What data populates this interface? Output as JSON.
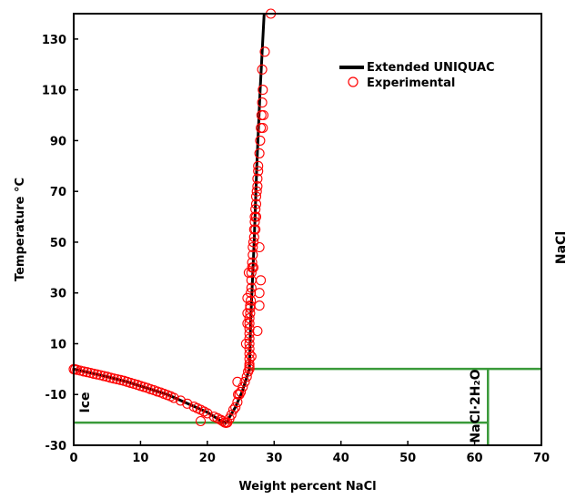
{
  "chart_data": {
    "type": "scatter",
    "title": "",
    "xlabel": "Weight percent NaCl",
    "ylabel": "Temperature °C",
    "xlim": [
      0,
      70
    ],
    "ylim": [
      -30,
      140
    ],
    "x_ticks": [
      "0",
      "10",
      "20",
      "30",
      "40",
      "50",
      "60",
      "70"
    ],
    "y_ticks": [
      "-30",
      "-10",
      "10",
      "30",
      "50",
      "70",
      "90",
      "110",
      "130"
    ],
    "x_tick_values": [
      0,
      10,
      20,
      30,
      40,
      50,
      60,
      70
    ],
    "y_tick_values": [
      -30,
      -10,
      10,
      30,
      50,
      70,
      90,
      110,
      130
    ],
    "grid": false,
    "legend_position": "top-right",
    "legend": {
      "model_label": "Extended UNIQUAC",
      "experimental_label": "Experimental"
    },
    "region_labels": {
      "ice": "Ice",
      "hydrate": "NaCl·2H₂O",
      "nacl": "NaCl"
    },
    "colors": {
      "model": "#000000",
      "experimental": "#ff0000",
      "phase_boundary": "#3a9a3a"
    },
    "series": [
      {
        "name": "Extended UNIQUAC",
        "style": "line",
        "segments": [
          [
            [
              0,
              0
            ],
            [
              2,
              -1.2
            ],
            [
              5,
              -3
            ],
            [
              8,
              -5
            ],
            [
              11,
              -7.5
            ],
            [
              14,
              -10
            ],
            [
              17,
              -13.5
            ],
            [
              20,
              -17
            ],
            [
              22,
              -20.3
            ],
            [
              22.8,
              -21.2
            ]
          ],
          [
            [
              22.8,
              -21.2
            ],
            [
              24.2,
              -15
            ],
            [
              25.2,
              -9
            ],
            [
              26.3,
              0.1
            ]
          ],
          [
            [
              26.3,
              0.1
            ],
            [
              26.5,
              20
            ],
            [
              27,
              50
            ],
            [
              27.4,
              80
            ],
            [
              27.9,
              110
            ],
            [
              28.5,
              140
            ]
          ]
        ]
      },
      {
        "name": "Experimental",
        "style": "scatter",
        "points": [
          [
            0,
            0
          ],
          [
            0.2,
            -0.1
          ],
          [
            0.5,
            -0.3
          ],
          [
            1.0,
            -0.6
          ],
          [
            1.5,
            -0.9
          ],
          [
            2.0,
            -1.2
          ],
          [
            2.5,
            -1.5
          ],
          [
            3.0,
            -1.8
          ],
          [
            3.5,
            -2.1
          ],
          [
            4.0,
            -2.4
          ],
          [
            4.5,
            -2.7
          ],
          [
            5.0,
            -3.0
          ],
          [
            5.5,
            -3.4
          ],
          [
            6.0,
            -3.7
          ],
          [
            6.5,
            -4.0
          ],
          [
            7.0,
            -4.3
          ],
          [
            7.5,
            -4.6
          ],
          [
            8.0,
            -5.0
          ],
          [
            8.5,
            -5.4
          ],
          [
            9.0,
            -5.8
          ],
          [
            9.5,
            -6.2
          ],
          [
            10.0,
            -6.6
          ],
          [
            10.5,
            -7.0
          ],
          [
            11.0,
            -7.4
          ],
          [
            11.5,
            -7.9
          ],
          [
            12.0,
            -8.3
          ],
          [
            12.5,
            -8.8
          ],
          [
            13.0,
            -9.2
          ],
          [
            13.5,
            -9.7
          ],
          [
            14.0,
            -10.2
          ],
          [
            14.5,
            -10.7
          ],
          [
            15.0,
            -11.3
          ],
          [
            16.0,
            -12.4
          ],
          [
            17.0,
            -13.6
          ],
          [
            18.0,
            -14.8
          ],
          [
            18.5,
            -15.4
          ],
          [
            19.0,
            -16.0
          ],
          [
            19.5,
            -16.7
          ],
          [
            20.0,
            -17.4
          ],
          [
            21.0,
            -18.7
          ],
          [
            21.5,
            -19.3
          ],
          [
            22.0,
            -20.0
          ],
          [
            22.3,
            -20.5
          ],
          [
            22.6,
            -21.0
          ],
          [
            22.8,
            -21.2
          ],
          [
            23.0,
            -21.0
          ],
          [
            19.0,
            -20.5
          ],
          [
            23.3,
            -19.5
          ],
          [
            23.6,
            -18.0
          ],
          [
            23.9,
            -16.0
          ],
          [
            24.2,
            -15.0
          ],
          [
            24.5,
            -13.0
          ],
          [
            24.6,
            -10.0
          ],
          [
            24.8,
            -10.0
          ],
          [
            25.0,
            -9.0
          ],
          [
            25.3,
            -7.0
          ],
          [
            25.6,
            -5.0
          ],
          [
            24.5,
            -5.0
          ],
          [
            25.9,
            -3.0
          ],
          [
            26.1,
            -1.0
          ],
          [
            26.3,
            0.1
          ],
          [
            26.3,
            1.0
          ],
          [
            26.3,
            2.0
          ],
          [
            26.3,
            4.0
          ],
          [
            26.3,
            6.0
          ],
          [
            26.3,
            8.0
          ],
          [
            26.3,
            10.0
          ],
          [
            26.3,
            12.0
          ],
          [
            26.3,
            14.0
          ],
          [
            26.3,
            16.0
          ],
          [
            26.3,
            18.0
          ],
          [
            26.3,
            20.0
          ],
          [
            26.4,
            22.0
          ],
          [
            26.4,
            24.0
          ],
          [
            26.4,
            25.0
          ],
          [
            26.5,
            27.0
          ],
          [
            26.5,
            30.0
          ],
          [
            26.6,
            32.0
          ],
          [
            26.6,
            35.0
          ],
          [
            26.6,
            38.0
          ],
          [
            26.7,
            40.0
          ],
          [
            26.7,
            42.0
          ],
          [
            26.8,
            45.0
          ],
          [
            26.8,
            48.0
          ],
          [
            26.9,
            50.0
          ],
          [
            27.0,
            52.0
          ],
          [
            27.0,
            55.0
          ],
          [
            27.1,
            58.0
          ],
          [
            27.1,
            60.0
          ],
          [
            27.2,
            63.0
          ],
          [
            27.3,
            65.0
          ],
          [
            27.3,
            68.0
          ],
          [
            27.4,
            70.0
          ],
          [
            27.5,
            72.0
          ],
          [
            27.5,
            75.0
          ],
          [
            27.6,
            78.0
          ],
          [
            27.6,
            80.0
          ],
          [
            27.8,
            85.0
          ],
          [
            27.9,
            90.0
          ],
          [
            28.0,
            95.0
          ],
          [
            28.3,
            95.0
          ],
          [
            28.1,
            100.0
          ],
          [
            28.4,
            100.0
          ],
          [
            28.2,
            105.0
          ],
          [
            28.3,
            110.0
          ],
          [
            28.2,
            118.0
          ],
          [
            28.6,
            125.0
          ],
          [
            29.5,
            140.0
          ],
          [
            26.0,
            18.0
          ],
          [
            26.0,
            22.0
          ],
          [
            27.5,
            15.0
          ],
          [
            27.8,
            25.0
          ],
          [
            27.8,
            30.0
          ],
          [
            28.0,
            35.0
          ],
          [
            26.9,
            40.0
          ],
          [
            25.8,
            10.0
          ],
          [
            26.0,
            28.0
          ],
          [
            27.3,
            60.0
          ],
          [
            26.2,
            38.0
          ],
          [
            27.8,
            48.0
          ],
          [
            27.2,
            55.0
          ],
          [
            26.6,
            5.0
          ]
        ]
      }
    ],
    "phase_boundaries": [
      [
        [
          0,
          -21.1
        ],
        [
          62,
          -21.1
        ]
      ],
      [
        [
          62,
          -30
        ],
        [
          62,
          0.1
        ]
      ],
      [
        [
          26.3,
          0.1
        ],
        [
          70,
          0.1
        ]
      ]
    ]
  }
}
